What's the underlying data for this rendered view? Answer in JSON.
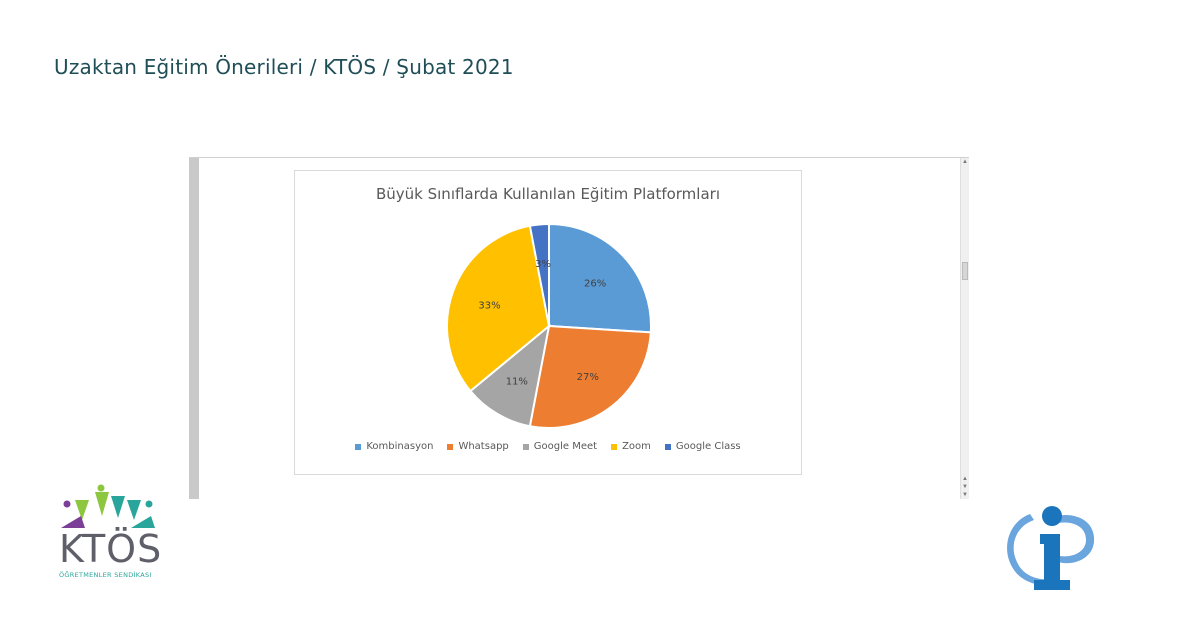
{
  "page": {
    "title": "Uzaktan Eğitim Önerileri / KTÖS / Şubat 2021"
  },
  "chart_data": {
    "type": "pie",
    "title": "Büyük Sınıflarda Kullanılan Eğitim Platformları",
    "categories": [
      "Kombinasyon",
      "Whatsapp",
      "Google Meet",
      "Zoom",
      "Google Class"
    ],
    "values": [
      26,
      27,
      11,
      33,
      3
    ],
    "value_labels": [
      "26%",
      "27%",
      "11%",
      "33%",
      "3%"
    ],
    "unit": "%",
    "colors": [
      "#5b9bd5",
      "#ed7d31",
      "#a5a5a5",
      "#ffc000",
      "#4472c4"
    ],
    "legend_position": "bottom",
    "start_angle": "top, clockwise"
  },
  "logos": {
    "ktos_word": "KTÖS",
    "ktos_subtitle": "ÖĞRETMENLER SENDİKASI",
    "info_logo_icon": "info-i-logo-icon",
    "ktos_colors": [
      "#8dc63f",
      "#2aa59b",
      "#7b3f98"
    ]
  }
}
